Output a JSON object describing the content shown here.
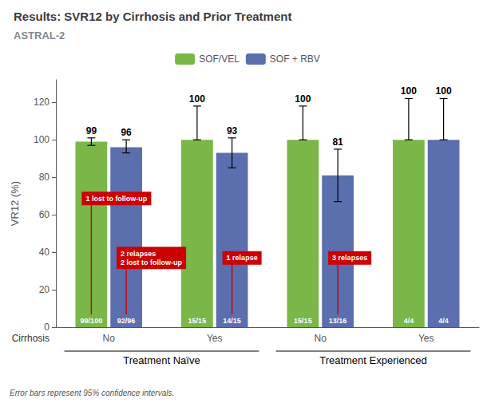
{
  "chart_data": {
    "type": "bar",
    "title": "Results: SVR12 by Cirrhosis and Prior Treatment",
    "subtitle": "ASTRAL-2",
    "ylabel": "VR12 (%)",
    "xlabel": "Cirrhosis",
    "categories": [
      "No",
      "Yes",
      "No",
      "Yes"
    ],
    "category_groups": [
      "Treatment Naïve",
      "Treatment Naïve",
      "Treatment Experienced",
      "Treatment Experienced"
    ],
    "series": [
      {
        "name": "SOF/VEL",
        "color": "#7ab648",
        "values": [
          99,
          100,
          100,
          100
        ],
        "err_lo": [
          2,
          0,
          0,
          0
        ],
        "err_hi": [
          2,
          18,
          18,
          22
        ],
        "bar_labels": [
          "99/100",
          "15/15",
          "15/15",
          "4/4"
        ],
        "annotations": [
          "1 lost to follow-up",
          null,
          null,
          null
        ]
      },
      {
        "name": "SOF + RBV",
        "color": "#5b6fae",
        "values": [
          96,
          93,
          81,
          100
        ],
        "err_lo": [
          3,
          8,
          14,
          0
        ],
        "err_hi": [
          4,
          8,
          14,
          22
        ],
        "bar_labels": [
          "92/96",
          "14/15",
          "13/16",
          "4/4"
        ],
        "annotations": [
          "2 relapses\n2 lost to follow-up",
          "1 relapse",
          "3 relapses",
          null
        ]
      }
    ],
    "annotation_color": "#cc0000",
    "ylim": [
      0,
      132
    ],
    "yticks": [
      0,
      20,
      40,
      60,
      80,
      100,
      120
    ],
    "grid": false,
    "data_labels": true,
    "legend": "top",
    "footer": "Error bars represent 95% confidence intervals."
  }
}
